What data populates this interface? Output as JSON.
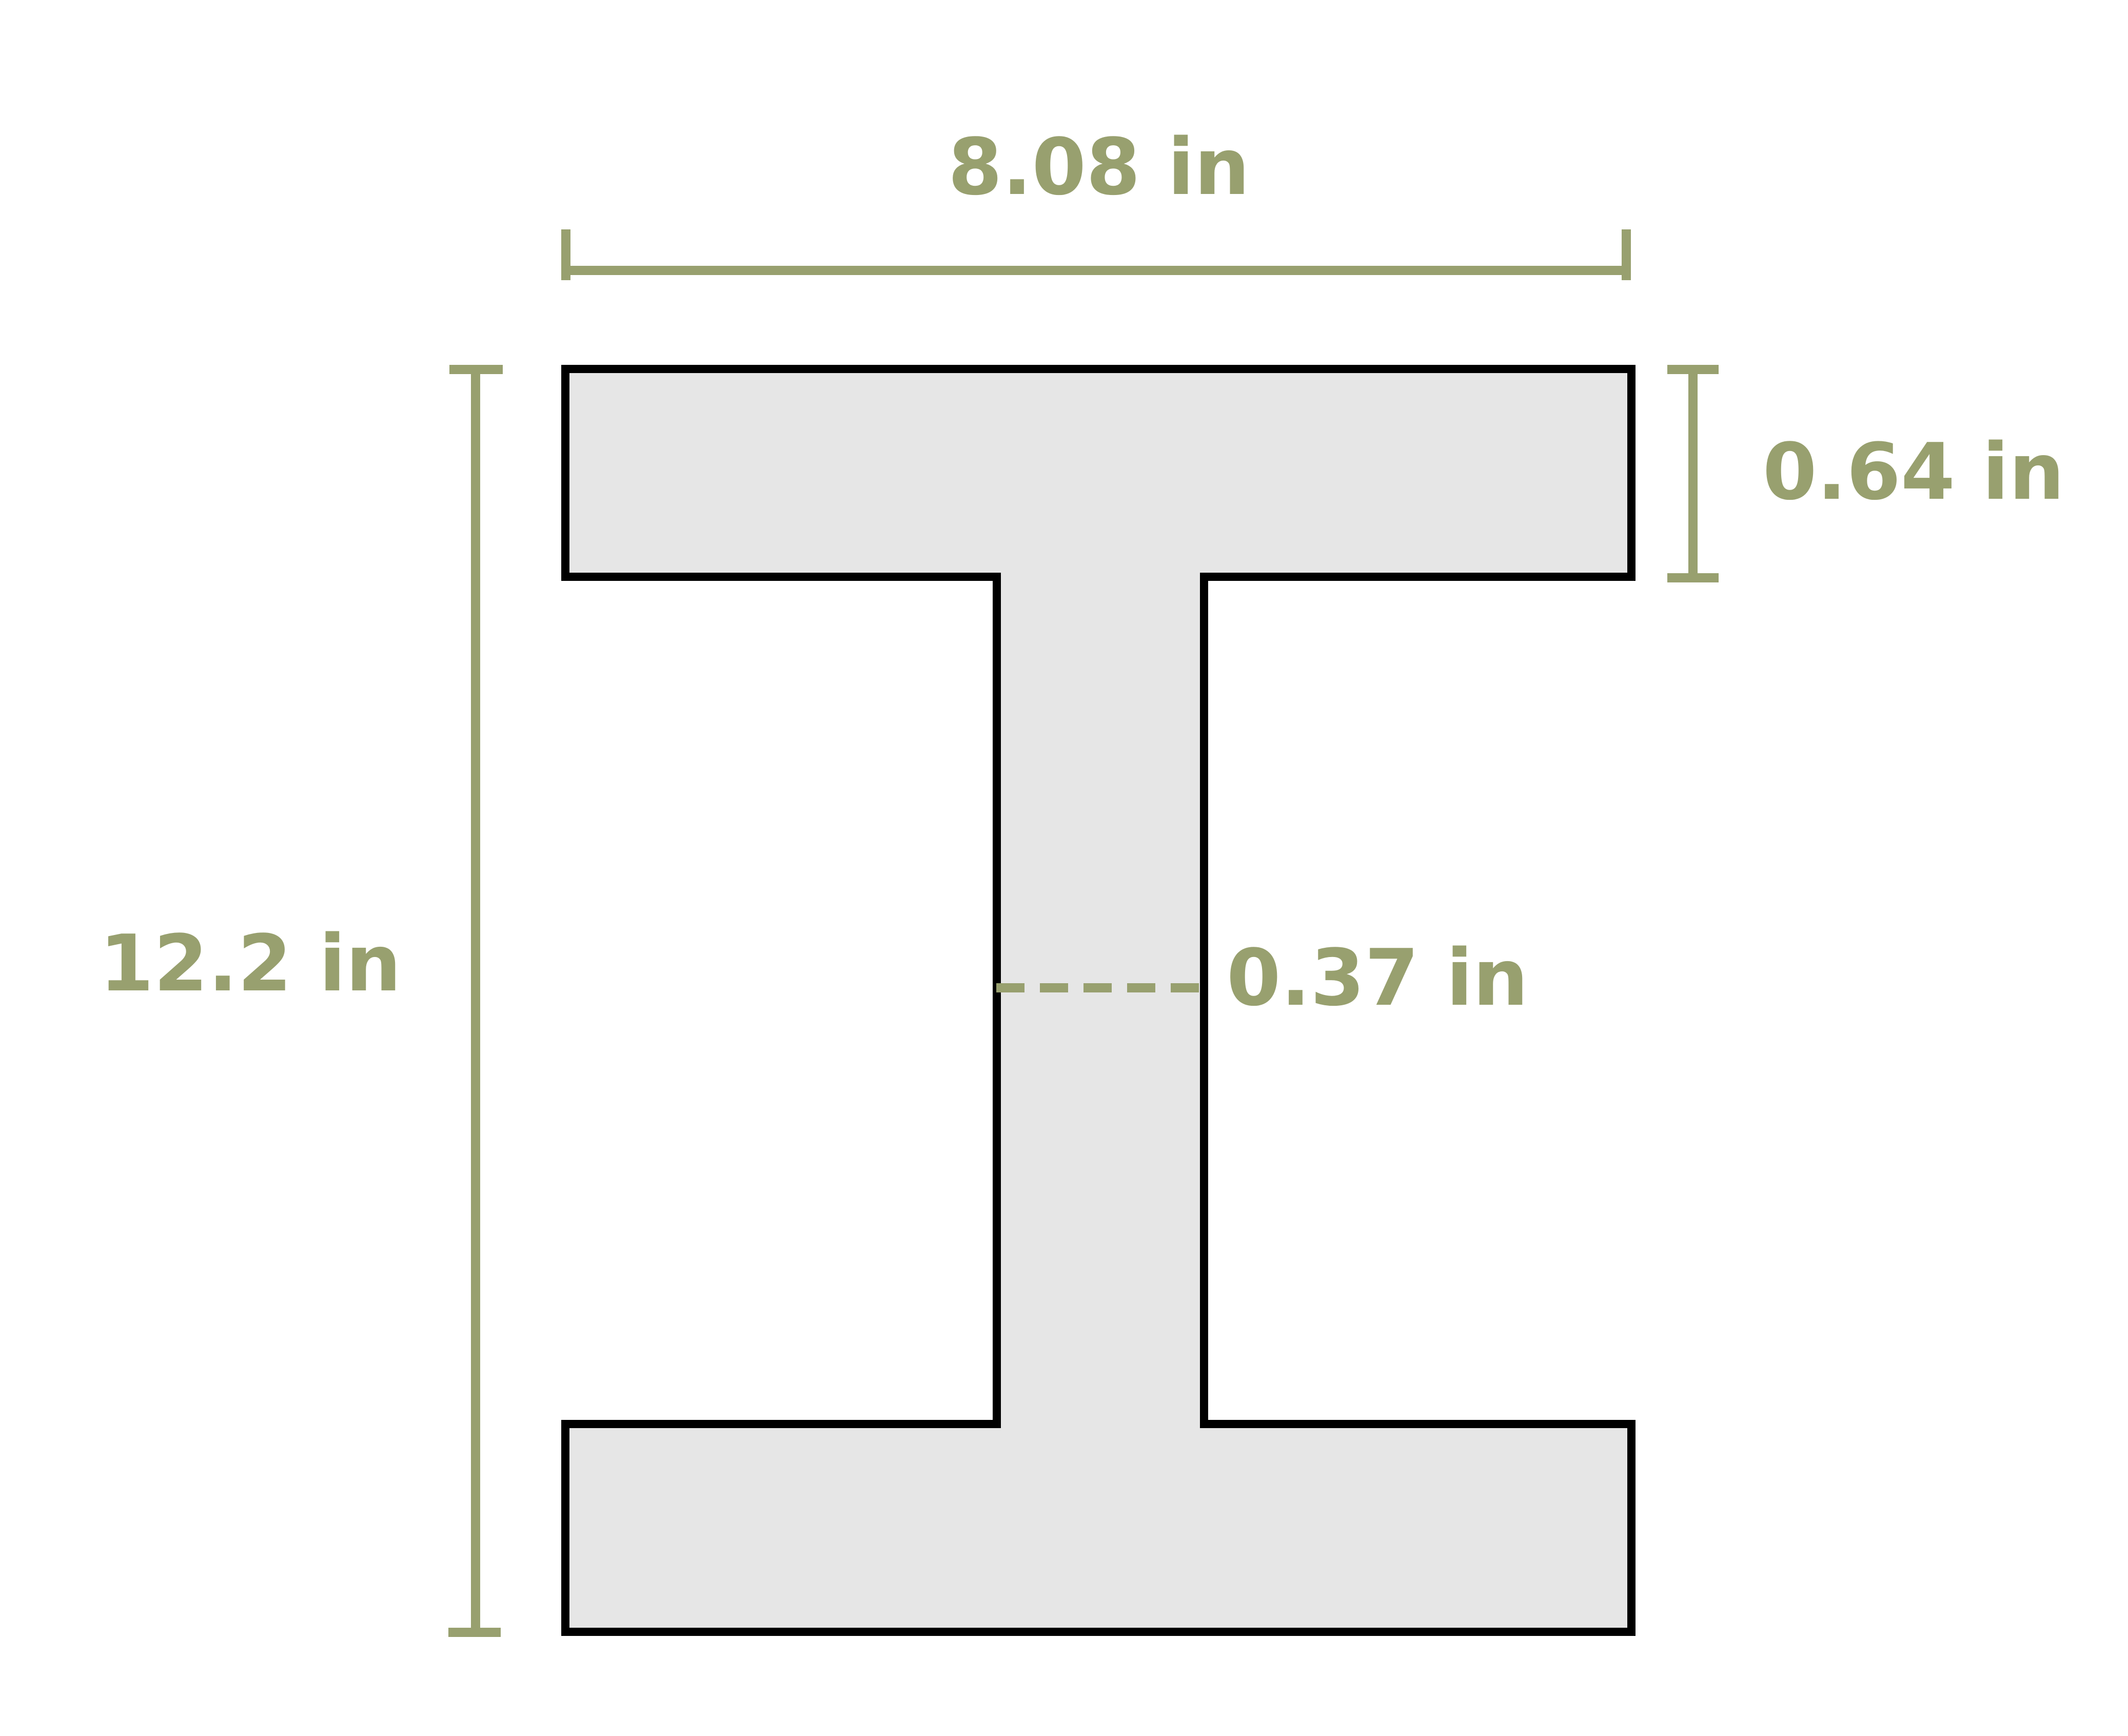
{
  "dimensions": {
    "flange_width": "8.08 in",
    "flange_thickness": "0.64 in",
    "total_depth": "12.2 in",
    "web_thickness": "0.37 in"
  },
  "colors": {
    "dimension": "#98a06f",
    "outline": "#000000",
    "fill": "#e6e6e6",
    "background": "#ffffff"
  }
}
